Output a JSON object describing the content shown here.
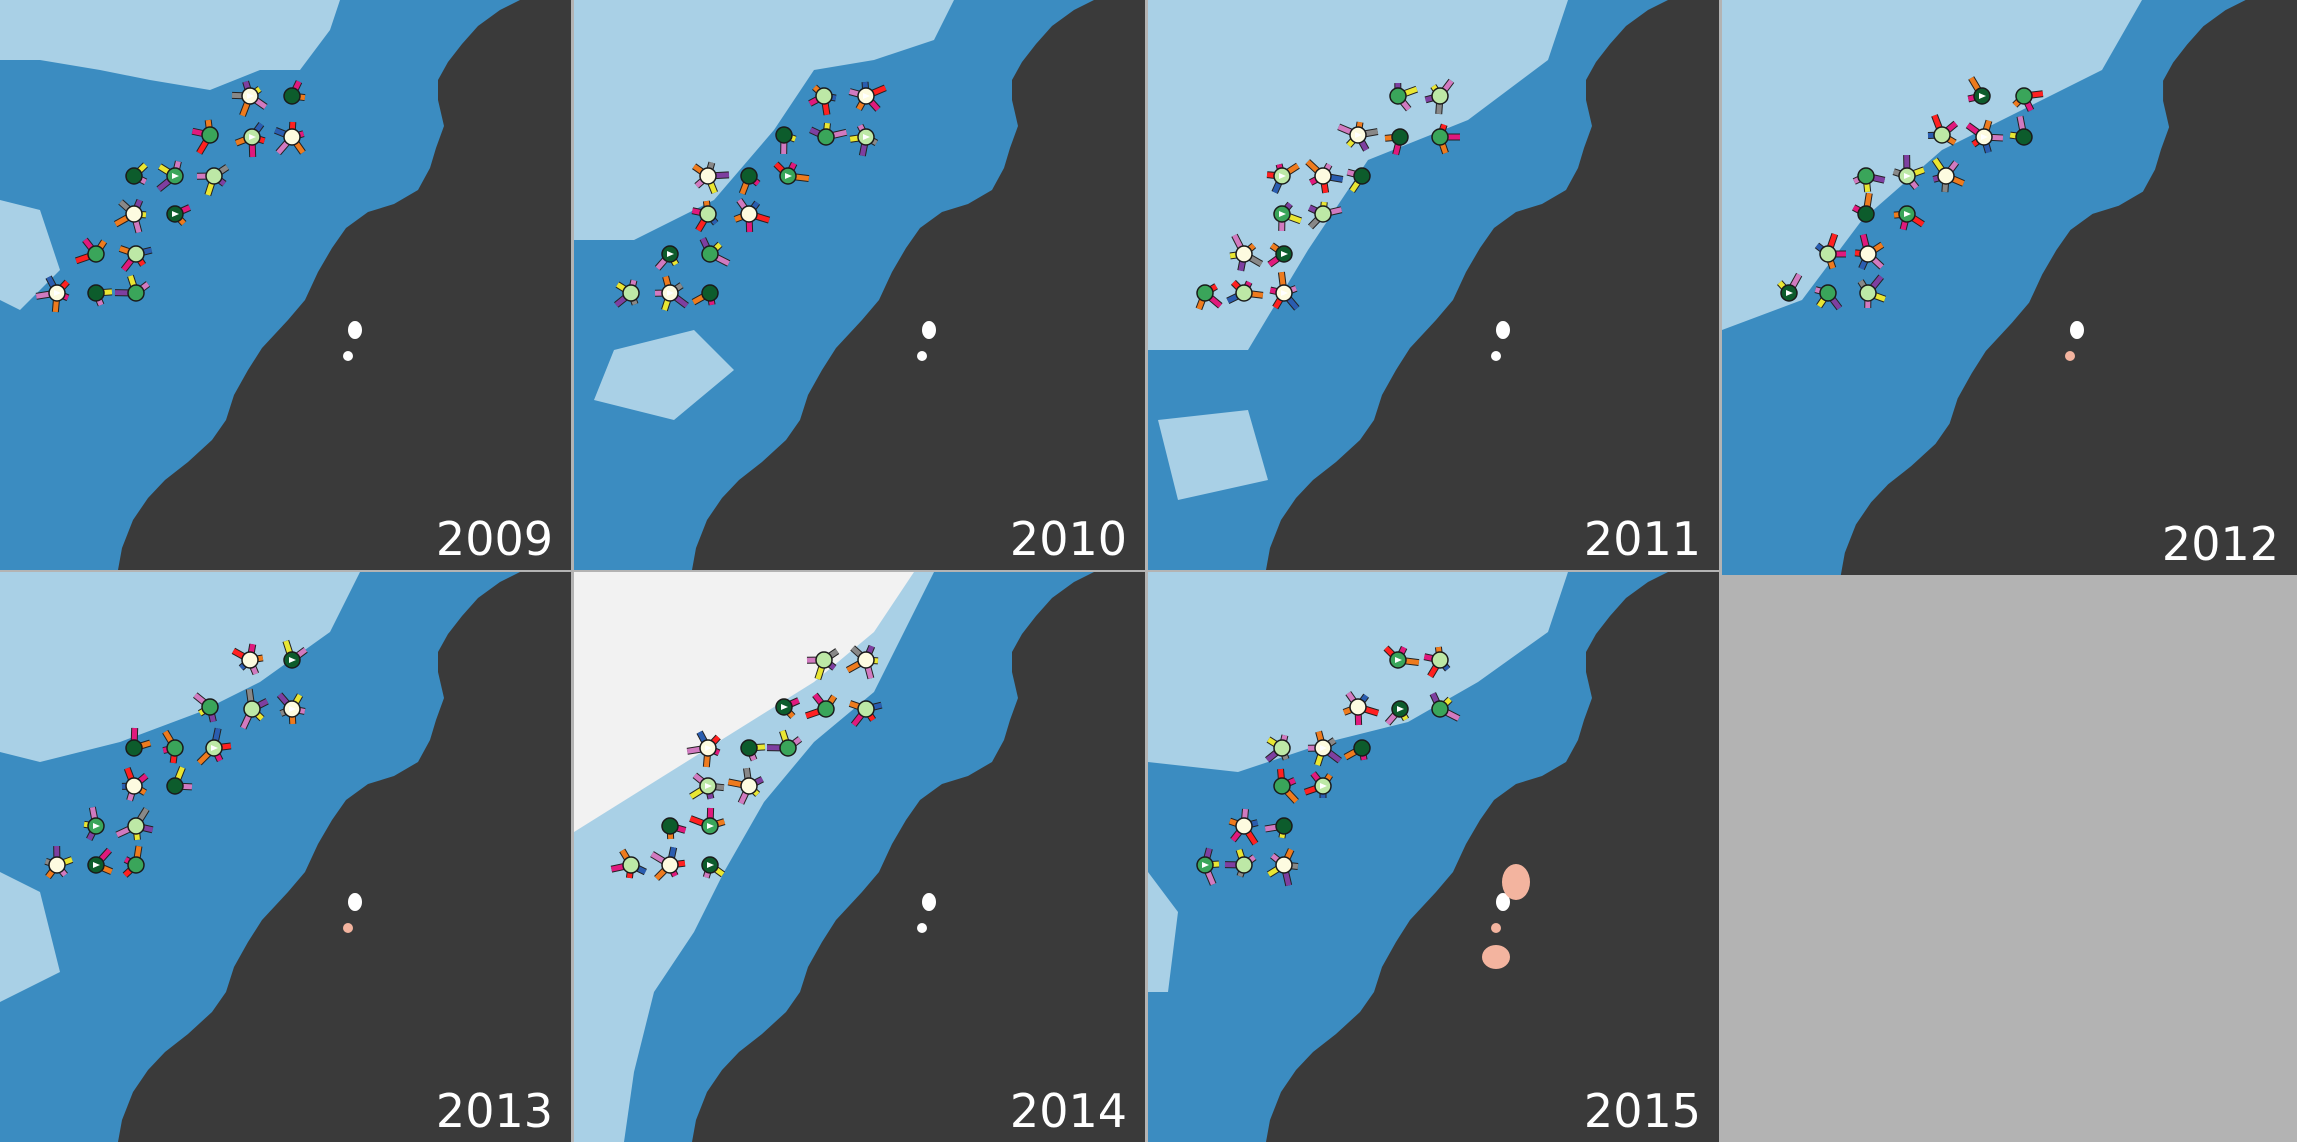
{
  "figure": {
    "colors": {
      "land": "#3a3a3a",
      "shallow_water": "#a9d0e6",
      "deep_water": "#3b8cc1",
      "ice": "#f2f2f2",
      "background": "#b3b3b3",
      "patch_white": "#ffffff",
      "patch_pink": "#f3b49f"
    },
    "marker_fill_colors": [
      "#0d5c2c",
      "#3aa55a",
      "#bde8a6",
      "#fdfbe0"
    ],
    "petal_colors": [
      "#e0197d",
      "#7e3fa0",
      "#2a5db0",
      "#ee7b1e",
      "#e9e633",
      "#ff2020",
      "#888888",
      "#d17ac0"
    ],
    "panels": [
      {
        "year": "2009"
      },
      {
        "year": "2010"
      },
      {
        "year": "2011"
      },
      {
        "year": "2012"
      },
      {
        "year": "2013"
      },
      {
        "year": "2014"
      },
      {
        "year": "2015"
      }
    ]
  }
}
